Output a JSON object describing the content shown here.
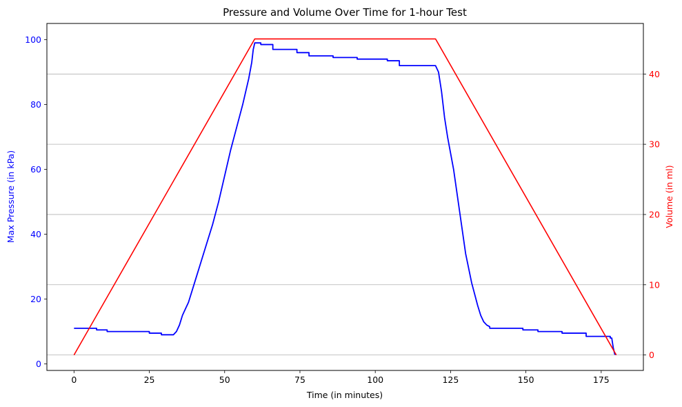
{
  "chart_data": {
    "type": "line",
    "title": "Pressure and Volume Over Time for 1-hour Test",
    "xlabel": "Time (in minutes)",
    "ylabel_left": "Max Pressure (in kPa)",
    "ylabel_right": "Volume (in ml)",
    "xlim": [
      -9,
      189
    ],
    "ylim_left": [
      -2,
      105
    ],
    "ylim_right": [
      -2.2,
      47.2
    ],
    "x_ticks": [
      0,
      25,
      50,
      75,
      100,
      125,
      150,
      175
    ],
    "x_tick_labels": [
      "0",
      "25",
      "50",
      "75",
      "100",
      "125",
      "150",
      "175"
    ],
    "y_left_ticks": [
      0,
      20,
      40,
      60,
      80,
      100
    ],
    "y_left_tick_labels": [
      "0",
      "20",
      "40",
      "60",
      "80",
      "100"
    ],
    "y_right_ticks": [
      0,
      10,
      20,
      30,
      40
    ],
    "y_right_tick_labels": [
      "0",
      "10",
      "20",
      "30",
      "40"
    ],
    "grid": "horizontal lines at right-axis ticks",
    "legend": "none",
    "series": [
      {
        "axis": "left",
        "color": "#0000ff",
        "x": [
          0,
          7.5,
          7.5,
          11,
          11,
          25,
          25,
          29,
          29,
          33,
          34,
          35,
          36,
          37,
          38,
          40,
          42,
          44,
          46,
          48,
          50,
          52,
          54,
          56,
          58,
          59,
          59.5,
          60,
          60.5,
          62,
          62,
          66,
          66,
          74,
          74,
          78,
          78,
          86,
          86,
          94,
          94,
          104,
          104,
          108,
          108,
          120,
          121,
          122,
          123,
          124,
          126,
          128,
          130,
          132,
          134,
          135,
          136,
          137,
          138,
          138,
          149,
          149,
          154,
          154,
          162,
          162,
          170,
          170,
          178,
          178,
          178.5,
          179,
          179.5,
          180
        ],
        "y": [
          11,
          11,
          10.5,
          10.5,
          10,
          10,
          9.5,
          9.5,
          9,
          9,
          10,
          12,
          15,
          17,
          19,
          25,
          31,
          37,
          43,
          50,
          58,
          66,
          73,
          80,
          88,
          93,
          97,
          99,
          99,
          99,
          98.5,
          98.5,
          97,
          97,
          96,
          96,
          95,
          95,
          94.5,
          94.5,
          94,
          94,
          93.5,
          93.5,
          92,
          92,
          90,
          84,
          76,
          70,
          60,
          47,
          34,
          25,
          18,
          15,
          13,
          12,
          11.5,
          11,
          11,
          10.5,
          10.5,
          10,
          10,
          9.5,
          9.5,
          8.5,
          8.5,
          8,
          8,
          5,
          3,
          3
        ]
      },
      {
        "axis": "right",
        "color": "#ff0000",
        "x": [
          0,
          60,
          120,
          180
        ],
        "y": [
          0,
          45,
          45,
          0
        ]
      }
    ]
  }
}
